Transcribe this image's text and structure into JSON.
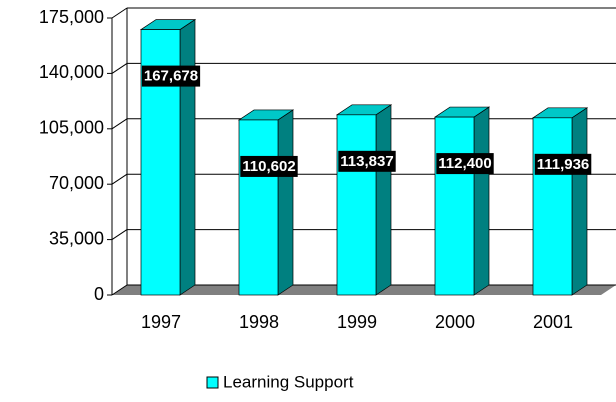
{
  "chart_data": {
    "type": "bar",
    "categories": [
      "1997",
      "1998",
      "1999",
      "2000",
      "2001"
    ],
    "series": [
      {
        "name": "Learning Support",
        "color": "#00ffff",
        "values": [
          167678,
          110602,
          113837,
          112400,
          111936
        ],
        "value_labels": [
          "167,678",
          "110,602",
          "113,837",
          "112,400",
          "111,936"
        ]
      }
    ],
    "ylim": [
      0,
      175000
    ],
    "yticks": [
      0,
      {
        "value": 35000,
        "label": "35,000"
      },
      {
        "value": 70000,
        "label": "70,000"
      },
      {
        "value": 105000,
        "label": "105,000"
      },
      {
        "value": 140000,
        "label": "140,000"
      },
      {
        "value": 175000,
        "label": "175,000"
      }
    ],
    "grid": true,
    "legend": "bottom"
  }
}
